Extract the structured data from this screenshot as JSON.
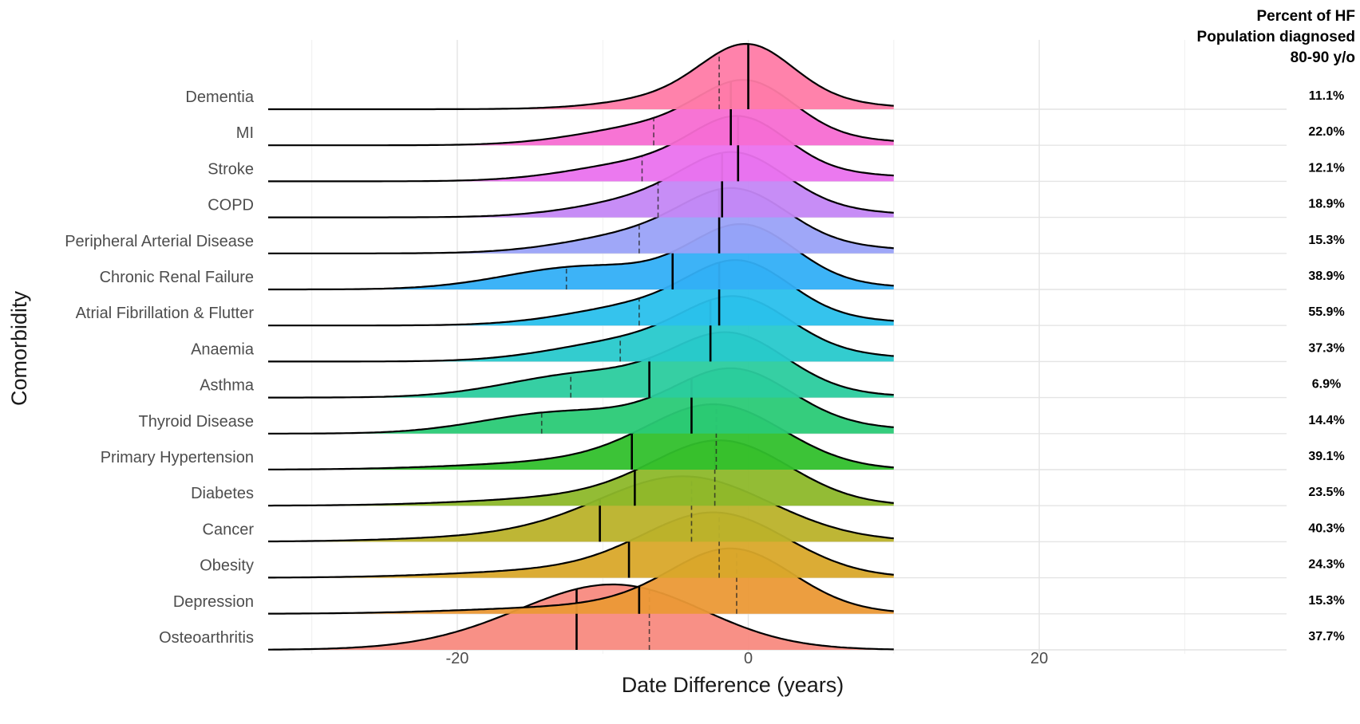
{
  "chart_data": {
    "type": "ridgeline",
    "xlabel": "Date Difference (years)",
    "ylabel": "Comorbidity",
    "x_ticks": [
      "-20",
      "0",
      "20"
    ],
    "xlim": [
      -33,
      37
    ],
    "grid": true,
    "right_column_title": [
      "Percent of HF",
      "Population diagnosed",
      "80-90 y/o"
    ],
    "series": [
      {
        "name": "Dementia",
        "percent": "11.1%",
        "color": "#FF7BA6",
        "median": 0,
        "mean": -2,
        "left_end": -33,
        "right_end": 10,
        "peak": 0,
        "width": 3.0,
        "tail": 0.04
      },
      {
        "name": "MI",
        "percent": "22.0%",
        "color": "#F76DD2",
        "median": -1.2,
        "mean": -6.5,
        "left_end": -33,
        "right_end": 10,
        "peak": 0,
        "width": 3.2,
        "tail": 0.1
      },
      {
        "name": "Stroke",
        "percent": "12.1%",
        "color": "#EA72EE",
        "median": -0.7,
        "mean": -7.3,
        "left_end": -33,
        "right_end": 10,
        "peak": -0.5,
        "width": 3.2,
        "tail": 0.12
      },
      {
        "name": "COPD",
        "percent": "18.9%",
        "color": "#C487F5",
        "median": -1.8,
        "mean": -6.2,
        "left_end": -33,
        "right_end": 10,
        "peak": -0.8,
        "width": 3.4,
        "tail": 0.14
      },
      {
        "name": "Peripheral Arterial Disease",
        "percent": "15.3%",
        "color": "#9AA2F8",
        "median": -2.0,
        "mean": -7.5,
        "left_end": -33,
        "right_end": 10,
        "peak": -0.8,
        "width": 3.5,
        "tail": 0.14
      },
      {
        "name": "Chronic Renal Failure",
        "percent": "38.9%",
        "color": "#33AFF7",
        "median": -5.2,
        "mean": -12.5,
        "left_end": -33,
        "right_end": 10,
        "peak": -0.3,
        "width": 3.5,
        "tail": 0.1
      },
      {
        "name": "Atrial Fibrillation & Flutter",
        "percent": "55.9%",
        "color": "#2AC0EC",
        "median": -2.0,
        "mean": -7.5,
        "left_end": -33,
        "right_end": 10,
        "peak": -0.5,
        "width": 3.4,
        "tail": 0.12
      },
      {
        "name": "Anaemia",
        "percent": "37.3%",
        "color": "#28C9CC",
        "median": -2.6,
        "mean": -8.8,
        "left_end": -33,
        "right_end": 10,
        "peak": -0.7,
        "width": 3.6,
        "tail": 0.14
      },
      {
        "name": "Asthma",
        "percent": "6.9%",
        "color": "#2BCC9E",
        "median": -6.8,
        "mean": -12.2,
        "left_end": -33,
        "right_end": 10,
        "peak": -1.2,
        "width": 3.8,
        "tail": 0.14
      },
      {
        "name": "Thyroid Disease",
        "percent": "14.4%",
        "color": "#2ACA76",
        "median": -3.9,
        "mean": -14.2,
        "left_end": -33,
        "right_end": 10,
        "peak": -1.0,
        "width": 4.0,
        "tail": 0.1
      },
      {
        "name": "Primary Hypertension",
        "percent": "39.1%",
        "color": "#32C02C",
        "median": -8.0,
        "mean": -2.2,
        "left_end": -33,
        "right_end": 10,
        "peak": -2.0,
        "width": 4.5,
        "tail": 0.12
      },
      {
        "name": "Diabetes",
        "percent": "23.5%",
        "color": "#8DB82A",
        "median": -7.8,
        "mean": -2.3,
        "left_end": -33,
        "right_end": 10,
        "peak": -1.5,
        "width": 4.5,
        "tail": 0.12
      },
      {
        "name": "Cancer",
        "percent": "40.3%",
        "color": "#BBB22A",
        "median": -10.2,
        "mean": -3.9,
        "left_end": -33,
        "right_end": 10,
        "peak": -4.0,
        "width": 6.0,
        "tail": 0.1
      },
      {
        "name": "Obesity",
        "percent": "24.3%",
        "color": "#D9A82A",
        "median": -8.2,
        "mean": -2.0,
        "left_end": -33,
        "right_end": 10,
        "peak": -2.0,
        "width": 4.8,
        "tail": 0.12
      },
      {
        "name": "Depression",
        "percent": "15.3%",
        "color": "#EB9936",
        "median": -7.5,
        "mean": -0.8,
        "left_end": -33,
        "right_end": 10,
        "peak": -1.0,
        "width": 4.0,
        "tail": 0.1
      },
      {
        "name": "Osteoarthritis",
        "percent": "37.7%",
        "color": "#F88A7F",
        "median": -11.8,
        "mean": -6.8,
        "left_end": -33,
        "right_end": 10,
        "peak": -10.0,
        "width": 6.5,
        "tail": 0.05
      }
    ]
  }
}
